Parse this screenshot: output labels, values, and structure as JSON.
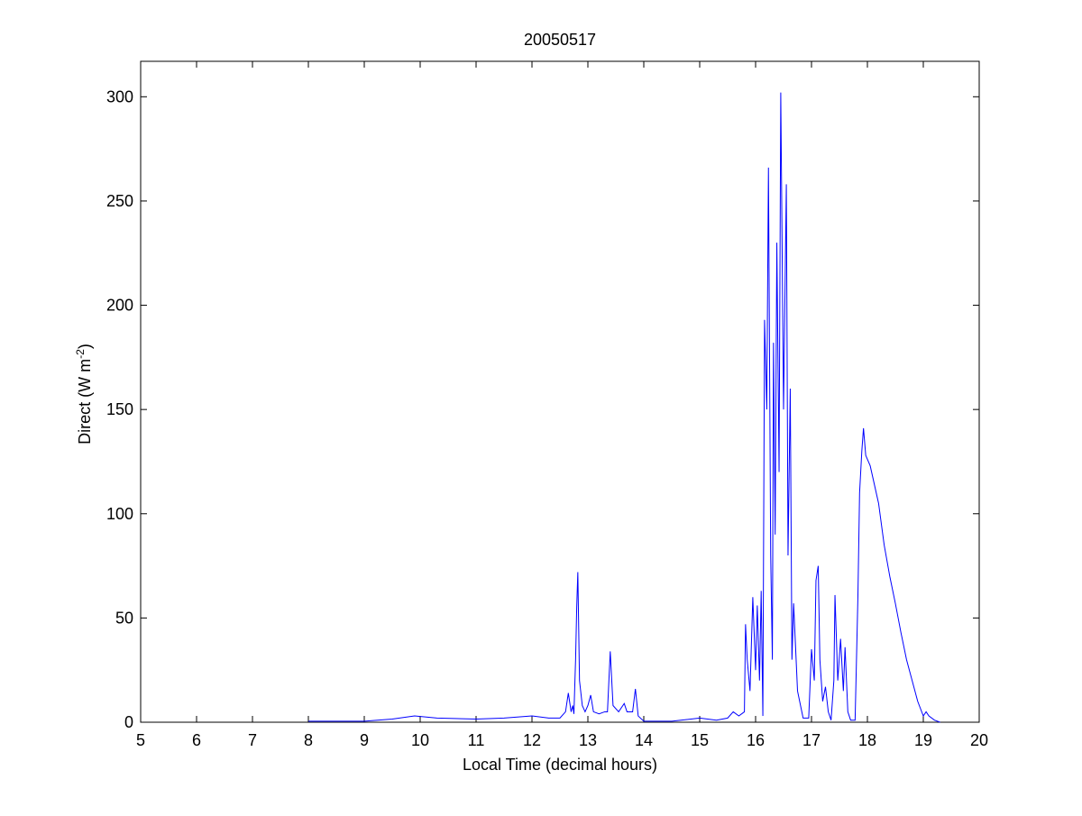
{
  "chart_data": {
    "type": "line",
    "title": "20050517",
    "x_label": "Local Time (decimal hours)",
    "y_label": {
      "text": "Direct (W m",
      "superscript": "-2",
      "suffix": ")"
    },
    "xlim": [
      5,
      20
    ],
    "xticks": [
      5,
      6,
      7,
      8,
      9,
      10,
      11,
      12,
      13,
      14,
      15,
      16,
      17,
      18,
      19,
      20
    ],
    "ylim": [
      0,
      317
    ],
    "yticks": [
      0,
      50,
      100,
      150,
      200,
      250,
      300
    ],
    "grid": false,
    "box": true,
    "x": [
      8.0,
      9.0,
      9.5,
      9.9,
      10.3,
      11.0,
      11.5,
      12.0,
      12.3,
      12.5,
      12.6,
      12.65,
      12.7,
      12.73,
      12.75,
      12.78,
      12.8,
      12.82,
      12.85,
      12.9,
      12.95,
      13.0,
      13.05,
      13.1,
      13.2,
      13.3,
      13.35,
      13.4,
      13.45,
      13.55,
      13.65,
      13.7,
      13.8,
      13.85,
      13.9,
      14.0,
      14.5,
      15.0,
      15.3,
      15.5,
      15.6,
      15.7,
      15.8,
      15.82,
      15.85,
      15.9,
      15.95,
      16.0,
      16.03,
      16.07,
      16.1,
      16.13,
      16.16,
      16.2,
      16.23,
      16.27,
      16.3,
      16.32,
      16.35,
      16.38,
      16.42,
      16.45,
      16.5,
      16.55,
      16.58,
      16.62,
      16.65,
      16.68,
      16.75,
      16.85,
      16.95,
      17.0,
      17.05,
      17.08,
      17.12,
      17.15,
      17.2,
      17.25,
      17.3,
      17.35,
      17.4,
      17.42,
      17.47,
      17.52,
      17.57,
      17.6,
      17.65,
      17.7,
      17.78,
      17.83,
      17.86,
      17.9,
      17.93,
      17.97,
      18.05,
      18.2,
      18.3,
      18.4,
      18.5,
      18.6,
      18.7,
      18.8,
      18.9,
      19.0,
      19.05,
      19.1,
      19.2,
      19.3
    ],
    "series": [
      {
        "name": "Direct",
        "color": "#0000ff",
        "values": [
          0.5,
          0.5,
          1.5,
          3,
          2,
          1.5,
          2,
          3,
          2,
          2,
          5,
          14,
          5,
          8,
          4,
          30,
          55,
          72,
          20,
          8,
          5,
          8,
          13,
          5,
          4,
          5,
          5,
          34,
          8,
          5,
          9,
          5,
          5,
          16,
          3,
          0.5,
          0.5,
          2,
          1,
          2,
          5,
          3,
          5,
          47,
          30,
          15,
          60,
          25,
          56,
          20,
          63,
          3,
          193,
          150,
          266,
          80,
          30,
          182,
          90,
          230,
          120,
          302,
          150,
          258,
          80,
          160,
          30,
          57,
          15,
          2,
          2,
          35,
          20,
          68,
          75,
          30,
          10,
          17,
          5,
          1,
          20,
          61,
          20,
          40,
          15,
          36,
          5,
          1,
          1,
          60,
          110,
          130,
          141,
          128,
          123,
          105,
          85,
          70,
          57,
          43,
          30,
          20,
          10,
          3,
          5,
          3,
          1,
          0
        ]
      }
    ]
  }
}
